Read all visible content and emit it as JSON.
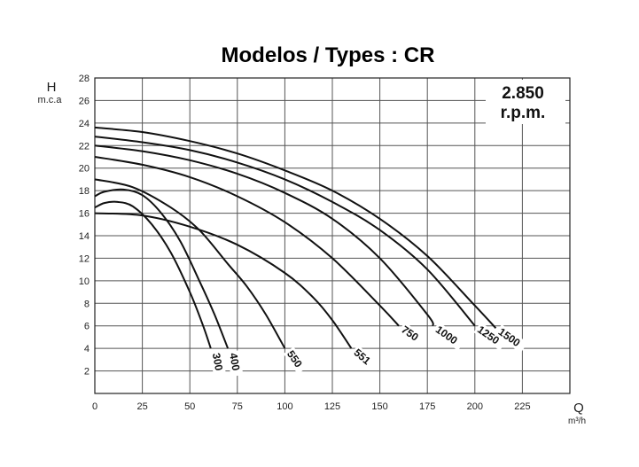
{
  "chart_data": {
    "type": "line",
    "title": "Modelos / Types : CR",
    "ylabel": "H",
    "ylabel_unit": "m.c.a",
    "xlabel": "Q",
    "xlabel_unit": "m³/h",
    "annotation_line1": "2.850",
    "annotation_line2": "r.p.m.",
    "xlim": [
      0,
      250
    ],
    "ylim": [
      0,
      28
    ],
    "x_ticks": [
      0,
      25,
      50,
      75,
      100,
      125,
      150,
      175,
      200,
      225
    ],
    "y_ticks": [
      2,
      4,
      6,
      8,
      10,
      12,
      14,
      16,
      18,
      20,
      22,
      24,
      26,
      28
    ],
    "grid": true,
    "series": [
      {
        "name": "300",
        "x": [
          0,
          5,
          12,
          20,
          30,
          40,
          50,
          57,
          61
        ],
        "y": [
          16.5,
          16.9,
          17.0,
          16.6,
          15.0,
          12.5,
          9.0,
          6.0,
          4.0
        ]
      },
      {
        "name": "400",
        "x": [
          0,
          5,
          15,
          25,
          35,
          45,
          55,
          63,
          70
        ],
        "y": [
          17.5,
          17.9,
          18.1,
          17.6,
          16.0,
          13.5,
          10.0,
          7.0,
          4.0
        ]
      },
      {
        "name": "550",
        "x": [
          0,
          20,
          40,
          55,
          70,
          80,
          90,
          100
        ],
        "y": [
          19.0,
          18.3,
          16.5,
          14.5,
          11.5,
          9.5,
          7.0,
          4.0
        ]
      },
      {
        "name": "551",
        "x": [
          0,
          25,
          50,
          75,
          100,
          115,
          125,
          135
        ],
        "y": [
          16.0,
          15.8,
          14.8,
          13.2,
          10.7,
          8.5,
          6.5,
          4.0
        ]
      },
      {
        "name": "750",
        "x": [
          0,
          25,
          50,
          75,
          100,
          125,
          150,
          160
        ],
        "y": [
          21.0,
          20.3,
          19.2,
          17.5,
          15.2,
          12.0,
          7.8,
          6.0
        ]
      },
      {
        "name": "1000",
        "x": [
          0,
          25,
          50,
          75,
          100,
          125,
          150,
          175,
          178
        ],
        "y": [
          22.0,
          21.5,
          20.7,
          19.5,
          17.8,
          15.5,
          12.0,
          7.0,
          6.0
        ]
      },
      {
        "name": "1250",
        "x": [
          0,
          25,
          50,
          75,
          100,
          125,
          150,
          175,
          200
        ],
        "y": [
          22.8,
          22.3,
          21.6,
          20.5,
          19.0,
          17.0,
          14.5,
          11.0,
          6.0
        ]
      },
      {
        "name": "1500",
        "x": [
          0,
          25,
          50,
          75,
          100,
          125,
          150,
          175,
          200,
          211
        ],
        "y": [
          23.6,
          23.2,
          22.4,
          21.3,
          19.8,
          18.0,
          15.5,
          12.2,
          7.8,
          5.8
        ]
      }
    ]
  }
}
